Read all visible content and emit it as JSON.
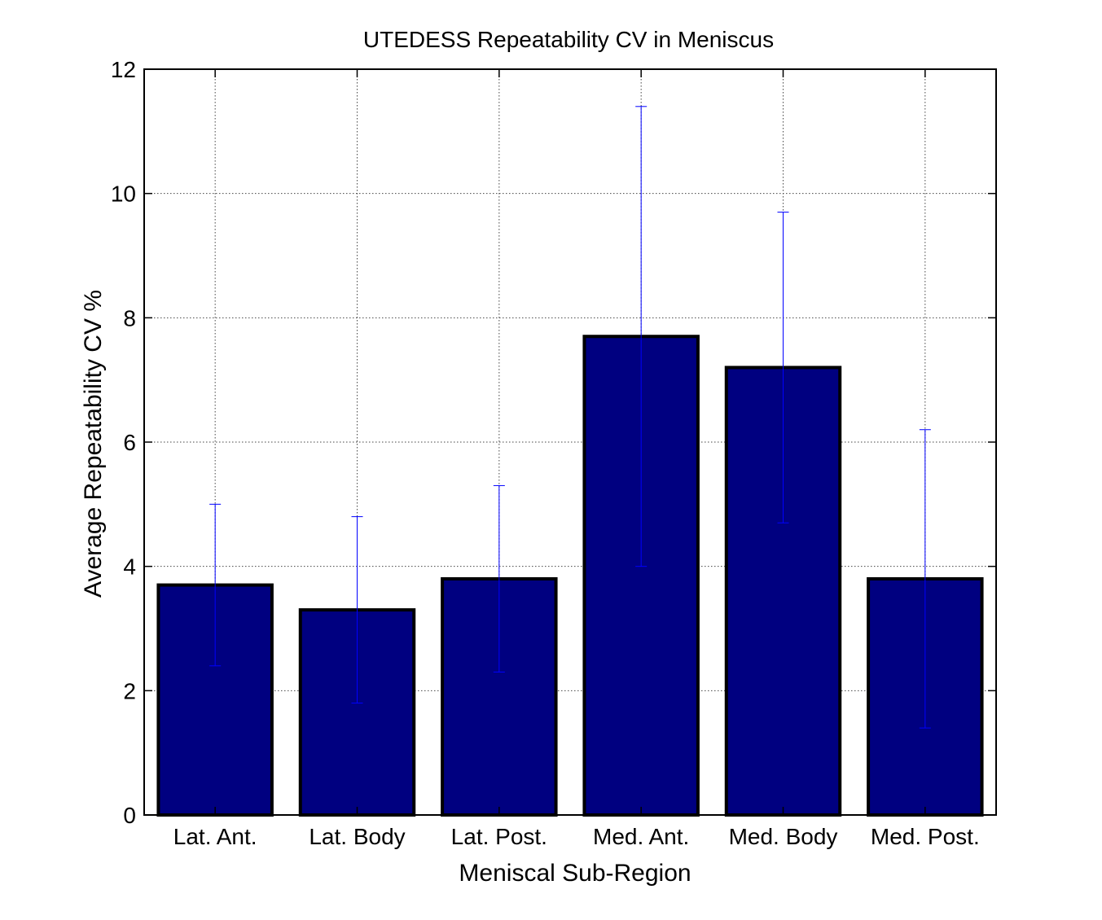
{
  "chart_data": {
    "type": "bar",
    "title": "UTEDESS Repeatability CV in Meniscus",
    "xlabel": "Meniscal Sub-Region",
    "ylabel": "Average Repeatability CV %",
    "categories": [
      "Lat. Ant.",
      "Lat. Body",
      "Lat. Post.",
      "Med. Ant.",
      "Med. Body",
      "Med. Post."
    ],
    "values": [
      3.7,
      3.3,
      3.8,
      7.7,
      7.2,
      3.8
    ],
    "error_low": [
      2.4,
      1.8,
      2.3,
      4.0,
      4.7,
      1.4
    ],
    "error_high": [
      5.0,
      4.8,
      5.3,
      11.4,
      9.7,
      6.2
    ],
    "ylim": [
      0,
      12
    ],
    "yticks": [
      0,
      2,
      4,
      6,
      8,
      10,
      12
    ],
    "grid": true,
    "bar_color": "#000080",
    "bar_edge_color": "#000000",
    "error_bar_color": "#0000ff"
  }
}
